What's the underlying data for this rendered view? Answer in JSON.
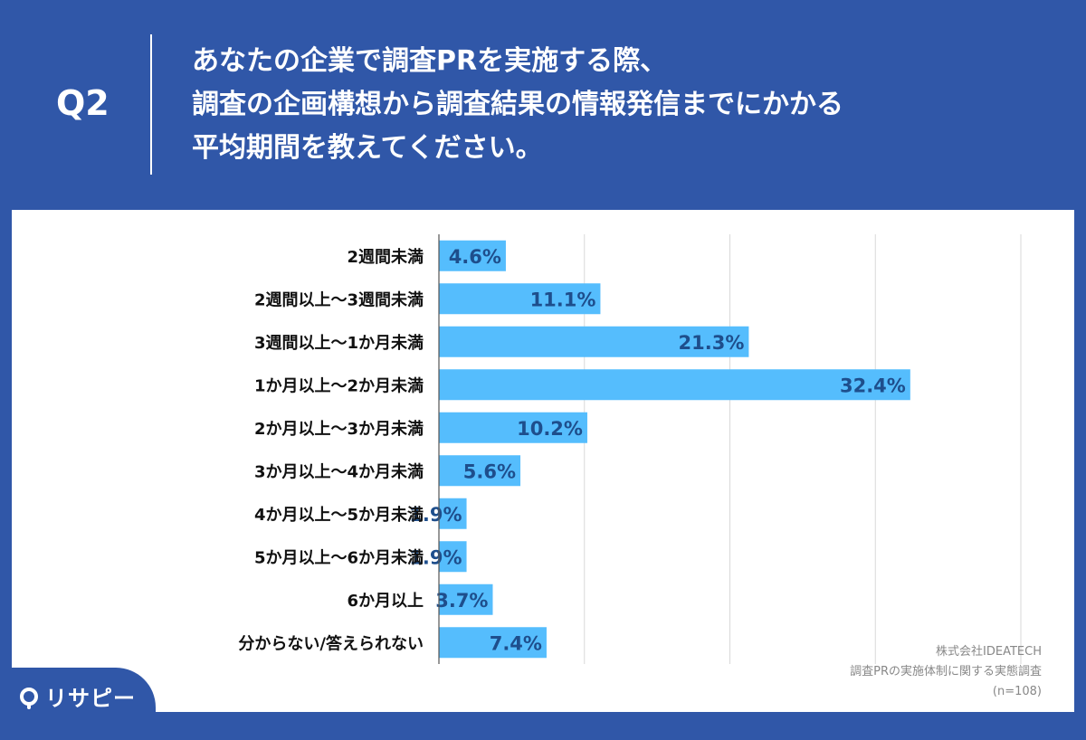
{
  "header": {
    "q_label": "Q2",
    "question_lines": [
      "あなたの企業で調査PRを実施する際、",
      "調査の企画構想から調査結果の情報発信までにかかる",
      "平均期間を教えてください。"
    ]
  },
  "chart_data": {
    "type": "bar",
    "orientation": "horizontal",
    "categories": [
      "2週間未満",
      "2週間以上～3週間未満",
      "3週間以上～1か月未満",
      "1か月以上～2か月未満",
      "2か月以上～3か月未満",
      "3か月以上～4か月未満",
      "4か月以上～5か月未満",
      "5か月以上～6か月未満",
      "6か月以上",
      "分からない/答えられない"
    ],
    "values": [
      4.6,
      11.1,
      21.3,
      32.4,
      10.2,
      5.6,
      1.9,
      1.9,
      3.7,
      7.4
    ],
    "labels": [
      "4.6%",
      "11.1%",
      "21.3%",
      "32.4%",
      "10.2%",
      "5.6%",
      "1.9%",
      "1.9%",
      "3.7%",
      "7.4%"
    ],
    "xlim": [
      0,
      40
    ],
    "grid": true,
    "bar_color": "#55bdfd",
    "label_color": "#1e4e8c"
  },
  "source": {
    "company": "株式会社IDEATECH",
    "survey": "調査PRの実施体制に関する実態調査",
    "sample": "(n=108)"
  },
  "logo": {
    "text": "リサピー"
  }
}
